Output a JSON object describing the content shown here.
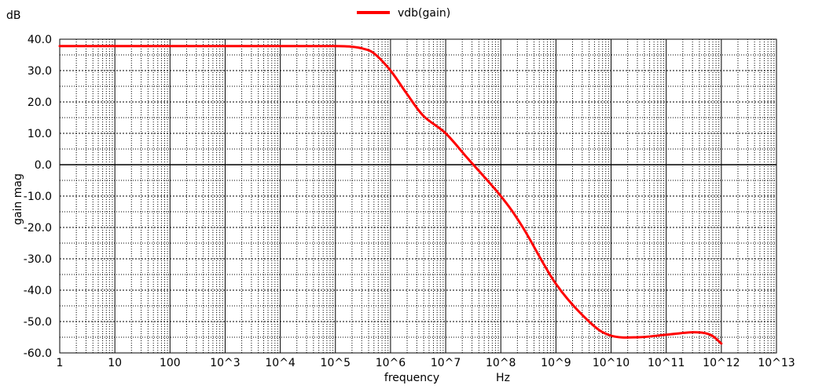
{
  "chart_data": {
    "type": "line",
    "title": "",
    "xlabel": "frequency",
    "xunit": "Hz",
    "ylabel": "gain mag",
    "yunit": "dB",
    "xscale": "log",
    "xlim": [
      1,
      10000000000000
    ],
    "ylim": [
      -60,
      40
    ],
    "grid": true,
    "legend_position": "top-center",
    "x_tick_labels": [
      "1",
      "10",
      "100",
      "10^3",
      "10^4",
      "10^5",
      "10^6",
      "10^7",
      "10^8",
      "10^9",
      "10^10",
      "10^11",
      "10^12",
      "10^13"
    ],
    "y_tick_labels": [
      "40.0",
      "30.0",
      "20.0",
      "10.0",
      "0.0",
      "-10.0",
      "-20.0",
      "-30.0",
      "-40.0",
      "-50.0",
      "-60.0"
    ],
    "series": [
      {
        "name": "vdb(gain)",
        "color": "#ff0000",
        "x": [
          1,
          10,
          100,
          1000,
          10000,
          100000,
          200000,
          316228,
          501187,
          1000000,
          1995262,
          3981072,
          10000000,
          25118864,
          100000000,
          251188643,
          1000000000,
          3981071706,
          10000000000,
          31622776602,
          100000000000,
          316227766017,
          630957344480,
          1000000000000
        ],
        "y": [
          37.8,
          37.8,
          37.8,
          37.8,
          37.8,
          37.8,
          37.6,
          37.0,
          35.5,
          30.0,
          22.5,
          15.5,
          10.0,
          2.0,
          -10.0,
          -20.0,
          -38.0,
          -50.0,
          -54.5,
          -55.0,
          -54.2,
          -53.4,
          -54.2,
          -57.0
        ]
      }
    ]
  }
}
